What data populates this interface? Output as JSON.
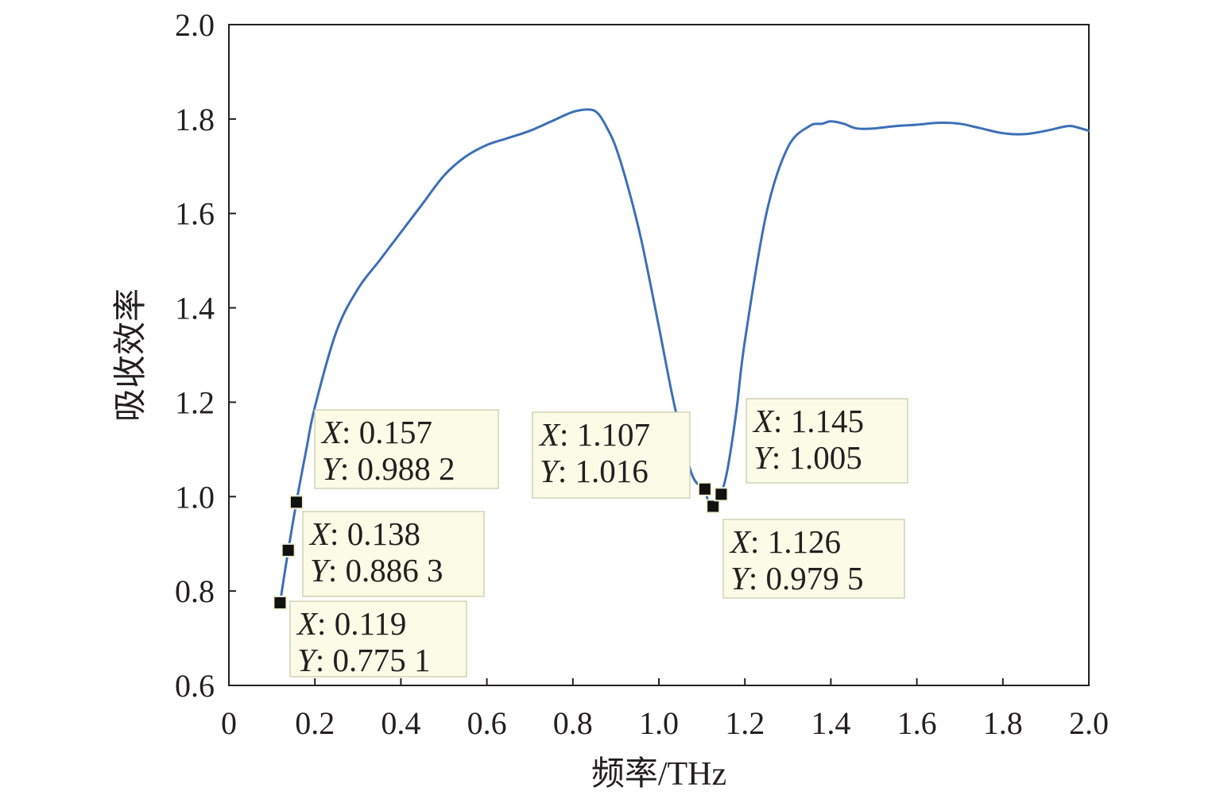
{
  "chart_data": {
    "type": "line",
    "title": "",
    "xlabel": "频率/THz",
    "ylabel": "吸收效率",
    "xlim": [
      0,
      2.0
    ],
    "ylim": [
      0.6,
      2.0
    ],
    "xticks": [
      "0",
      "0.2",
      "0.4",
      "0.6",
      "0.8",
      "1.0",
      "1.2",
      "1.4",
      "1.6",
      "1.8",
      "2.0"
    ],
    "xtick_values": [
      0,
      0.2,
      0.4,
      0.6,
      0.8,
      1.0,
      1.2,
      1.4,
      1.6,
      1.8,
      2.0
    ],
    "yticks": [
      "0.6",
      "0.8",
      "1.0",
      "1.2",
      "1.4",
      "1.6",
      "1.8",
      "2.0"
    ],
    "ytick_values": [
      0.6,
      0.8,
      1.0,
      1.2,
      1.4,
      1.6,
      1.8,
      2.0
    ],
    "grid": false,
    "line_color": "#3d6fb7",
    "series": [
      {
        "name": "",
        "x": [
          0.119,
          0.138,
          0.157,
          0.18,
          0.2,
          0.25,
          0.3,
          0.35,
          0.4,
          0.45,
          0.5,
          0.55,
          0.6,
          0.65,
          0.7,
          0.75,
          0.8,
          0.84,
          0.86,
          0.88,
          0.9,
          0.93,
          0.96,
          1.0,
          1.03,
          1.06,
          1.08,
          1.1,
          1.107,
          1.115,
          1.126,
          1.135,
          1.145,
          1.16,
          1.18,
          1.2,
          1.25,
          1.3,
          1.35,
          1.38,
          1.4,
          1.43,
          1.46,
          1.5,
          1.55,
          1.6,
          1.65,
          1.7,
          1.75,
          1.8,
          1.85,
          1.9,
          1.95,
          1.97,
          2.0
        ],
        "y": [
          0.7751,
          0.8863,
          0.9882,
          1.1,
          1.19,
          1.35,
          1.44,
          1.5,
          1.56,
          1.62,
          1.68,
          1.72,
          1.745,
          1.76,
          1.775,
          1.795,
          1.815,
          1.82,
          1.81,
          1.78,
          1.74,
          1.65,
          1.54,
          1.36,
          1.22,
          1.1,
          1.04,
          1.02,
          1.016,
          0.99,
          0.9795,
          0.99,
          1.005,
          1.06,
          1.18,
          1.33,
          1.6,
          1.74,
          1.785,
          1.79,
          1.795,
          1.79,
          1.78,
          1.78,
          1.785,
          1.788,
          1.792,
          1.79,
          1.78,
          1.77,
          1.768,
          1.775,
          1.785,
          1.783,
          1.775
        ]
      }
    ],
    "markers": [
      {
        "x": 0.119,
        "y": 0.7751,
        "label_x": "0.119",
        "label_y": "0.775 1"
      },
      {
        "x": 0.138,
        "y": 0.8863,
        "label_x": "0.138",
        "label_y": "0.886 3"
      },
      {
        "x": 0.157,
        "y": 0.9882,
        "label_x": "0.157",
        "label_y": "0.988 2"
      },
      {
        "x": 1.107,
        "y": 1.016,
        "label_x": "1.107",
        "label_y": "1.016"
      },
      {
        "x": 1.126,
        "y": 0.9795,
        "label_x": "1.126",
        "label_y": "0.979 5"
      },
      {
        "x": 1.145,
        "y": 1.005,
        "label_x": "1.145",
        "label_y": "1.005"
      }
    ],
    "datatip_prefix_x": "X",
    "datatip_prefix_y": "Y",
    "datatip_separator": ": "
  }
}
